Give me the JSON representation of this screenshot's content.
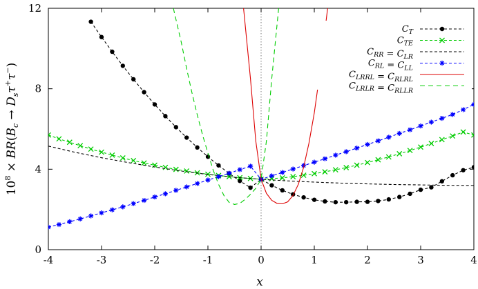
{
  "chart_data": {
    "type": "line",
    "title": "",
    "xlabel": "x",
    "ylabel": "10^8 × BR(B_c → D_s τ⁺τ⁻)",
    "xlim": [
      -4,
      4
    ],
    "ylim": [
      0,
      12
    ],
    "x_ticks": [
      "-4",
      "-3",
      "-2",
      "-1",
      "0",
      "1",
      "2",
      "3",
      "4"
    ],
    "y_ticks": [
      "0",
      "4",
      "8",
      "12"
    ],
    "legend_position": "top-right",
    "vertical_reference_line_x": 0,
    "series": [
      {
        "name": "C_T",
        "color": "#000000",
        "line_style": "dashed",
        "marker": "circle",
        "x": [
          -3.2,
          -3.0,
          -2.8,
          -2.6,
          -2.4,
          -2.2,
          -2.0,
          -1.8,
          -1.6,
          -1.4,
          -1.2,
          -1.0,
          -0.8,
          -0.6,
          -0.4,
          -0.2,
          0.0,
          0.2,
          0.4,
          0.6,
          0.8,
          1.0,
          1.2,
          1.4,
          1.6,
          1.8,
          2.0,
          2.2,
          2.4,
          2.6,
          2.8,
          3.0,
          3.2,
          3.4,
          3.6,
          3.8,
          4.0
        ],
        "y": [
          11.33,
          10.57,
          9.84,
          9.14,
          8.47,
          7.83,
          7.22,
          6.64,
          6.09,
          5.57,
          5.08,
          4.62,
          4.19,
          3.79,
          3.42,
          3.08,
          3.5,
          3.2,
          2.95,
          2.75,
          2.6,
          2.48,
          2.4,
          2.36,
          2.36,
          2.38,
          2.38,
          2.42,
          2.5,
          2.62,
          2.78,
          2.98,
          3.1,
          3.4,
          3.7,
          3.95,
          4.1
        ]
      },
      {
        "name": "C_TE",
        "color": "#00cc00",
        "line_style": "dashed",
        "marker": "x",
        "x": [
          -4.0,
          -3.8,
          -3.6,
          -3.4,
          -3.2,
          -3.0,
          -2.8,
          -2.6,
          -2.4,
          -2.2,
          -2.0,
          -1.8,
          -1.6,
          -1.4,
          -1.2,
          -1.0,
          -0.8,
          -0.6,
          -0.4,
          -0.2,
          0.0,
          0.2,
          0.4,
          0.6,
          0.8,
          1.0,
          1.2,
          1.4,
          1.6,
          1.8,
          2.0,
          2.2,
          2.4,
          2.6,
          2.8,
          3.0,
          3.2,
          3.4,
          3.6,
          3.8,
          4.0
        ],
        "y": [
          5.7,
          5.51,
          5.34,
          5.17,
          5.0,
          4.85,
          4.7,
          4.56,
          4.43,
          4.31,
          4.2,
          4.09,
          3.99,
          3.91,
          3.82,
          3.75,
          3.69,
          3.63,
          3.58,
          3.54,
          3.5,
          3.53,
          3.57,
          3.63,
          3.7,
          3.78,
          3.87,
          3.97,
          4.08,
          4.2,
          4.33,
          4.47,
          4.61,
          4.77,
          4.93,
          5.1,
          5.28,
          5.47,
          5.65,
          5.85,
          5.7
        ]
      },
      {
        "name": "C_RR = C_LR",
        "color": "#000000",
        "line_style": "dashed",
        "marker": "none",
        "x": [
          -4.0,
          -3.5,
          -3.0,
          -2.5,
          -2.0,
          -1.5,
          -1.0,
          -0.5,
          0.0,
          0.5,
          1.0,
          1.5,
          2.0,
          2.5,
          3.0,
          3.5,
          4.0
        ],
        "y": [
          5.15,
          4.84,
          4.57,
          4.33,
          4.11,
          3.91,
          3.74,
          3.6,
          3.5,
          3.42,
          3.36,
          3.31,
          3.27,
          3.24,
          3.22,
          3.2,
          3.19
        ]
      },
      {
        "name": "C_RL = C_LL",
        "color": "#0000ff",
        "line_style": "dashed",
        "marker": "asterisk",
        "x": [
          -4.0,
          -3.8,
          -3.6,
          -3.4,
          -3.2,
          -3.0,
          -2.8,
          -2.6,
          -2.4,
          -2.2,
          -2.0,
          -1.8,
          -1.6,
          -1.4,
          -1.2,
          -1.0,
          -0.8,
          -0.6,
          -0.4,
          -0.2,
          0.0,
          0.2,
          0.4,
          0.6,
          0.8,
          1.0,
          1.2,
          1.4,
          1.6,
          1.8,
          2.0,
          2.2,
          2.4,
          2.6,
          2.8,
          3.0,
          3.2,
          3.4,
          3.6,
          3.8,
          4.0
        ],
        "y": [
          1.12,
          1.25,
          1.39,
          1.53,
          1.68,
          1.83,
          1.98,
          2.13,
          2.29,
          2.45,
          2.62,
          2.78,
          2.95,
          3.12,
          3.29,
          3.46,
          3.63,
          3.8,
          3.98,
          4.15,
          3.5,
          3.67,
          3.84,
          4.01,
          4.18,
          4.35,
          4.52,
          4.7,
          4.87,
          5.05,
          5.23,
          5.41,
          5.59,
          5.78,
          5.96,
          6.15,
          6.34,
          6.53,
          6.72,
          6.96,
          7.22
        ]
      },
      {
        "name": "C_LRRL = C_RLRL",
        "color": "#dd0000",
        "line_style": "solid",
        "marker": "none",
        "x": [
          -0.33,
          -0.2,
          -0.1,
          0.0,
          0.1,
          0.2,
          0.3,
          0.4,
          0.5,
          0.6,
          0.7,
          0.8,
          0.9,
          1.0,
          1.1,
          1.2,
          1.25
        ],
        "y": [
          12.0,
          8.5,
          5.4,
          3.5,
          2.8,
          2.45,
          2.3,
          2.28,
          2.38,
          2.7,
          3.25,
          4.1,
          5.3,
          6.8,
          8.7,
          10.9,
          12.0
        ]
      },
      {
        "name": "C_LRLR = C_RLLR",
        "color": "#00cc00",
        "line_style": "dashed",
        "marker": "none",
        "x": [
          -1.65,
          -1.5,
          -1.4,
          -1.3,
          -1.2,
          -1.1,
          -1.0,
          -0.9,
          -0.8,
          -0.7,
          -0.6,
          -0.5,
          -0.4,
          -0.3,
          -0.2,
          -0.1,
          0.0,
          0.1,
          0.2,
          0.33
        ],
        "y": [
          12.0,
          10.3,
          9.0,
          7.8,
          6.7,
          5.7,
          4.8,
          3.95,
          3.25,
          2.7,
          2.35,
          2.25,
          2.3,
          2.5,
          2.75,
          3.05,
          3.5,
          5.4,
          8.5,
          12.0
        ]
      }
    ]
  }
}
